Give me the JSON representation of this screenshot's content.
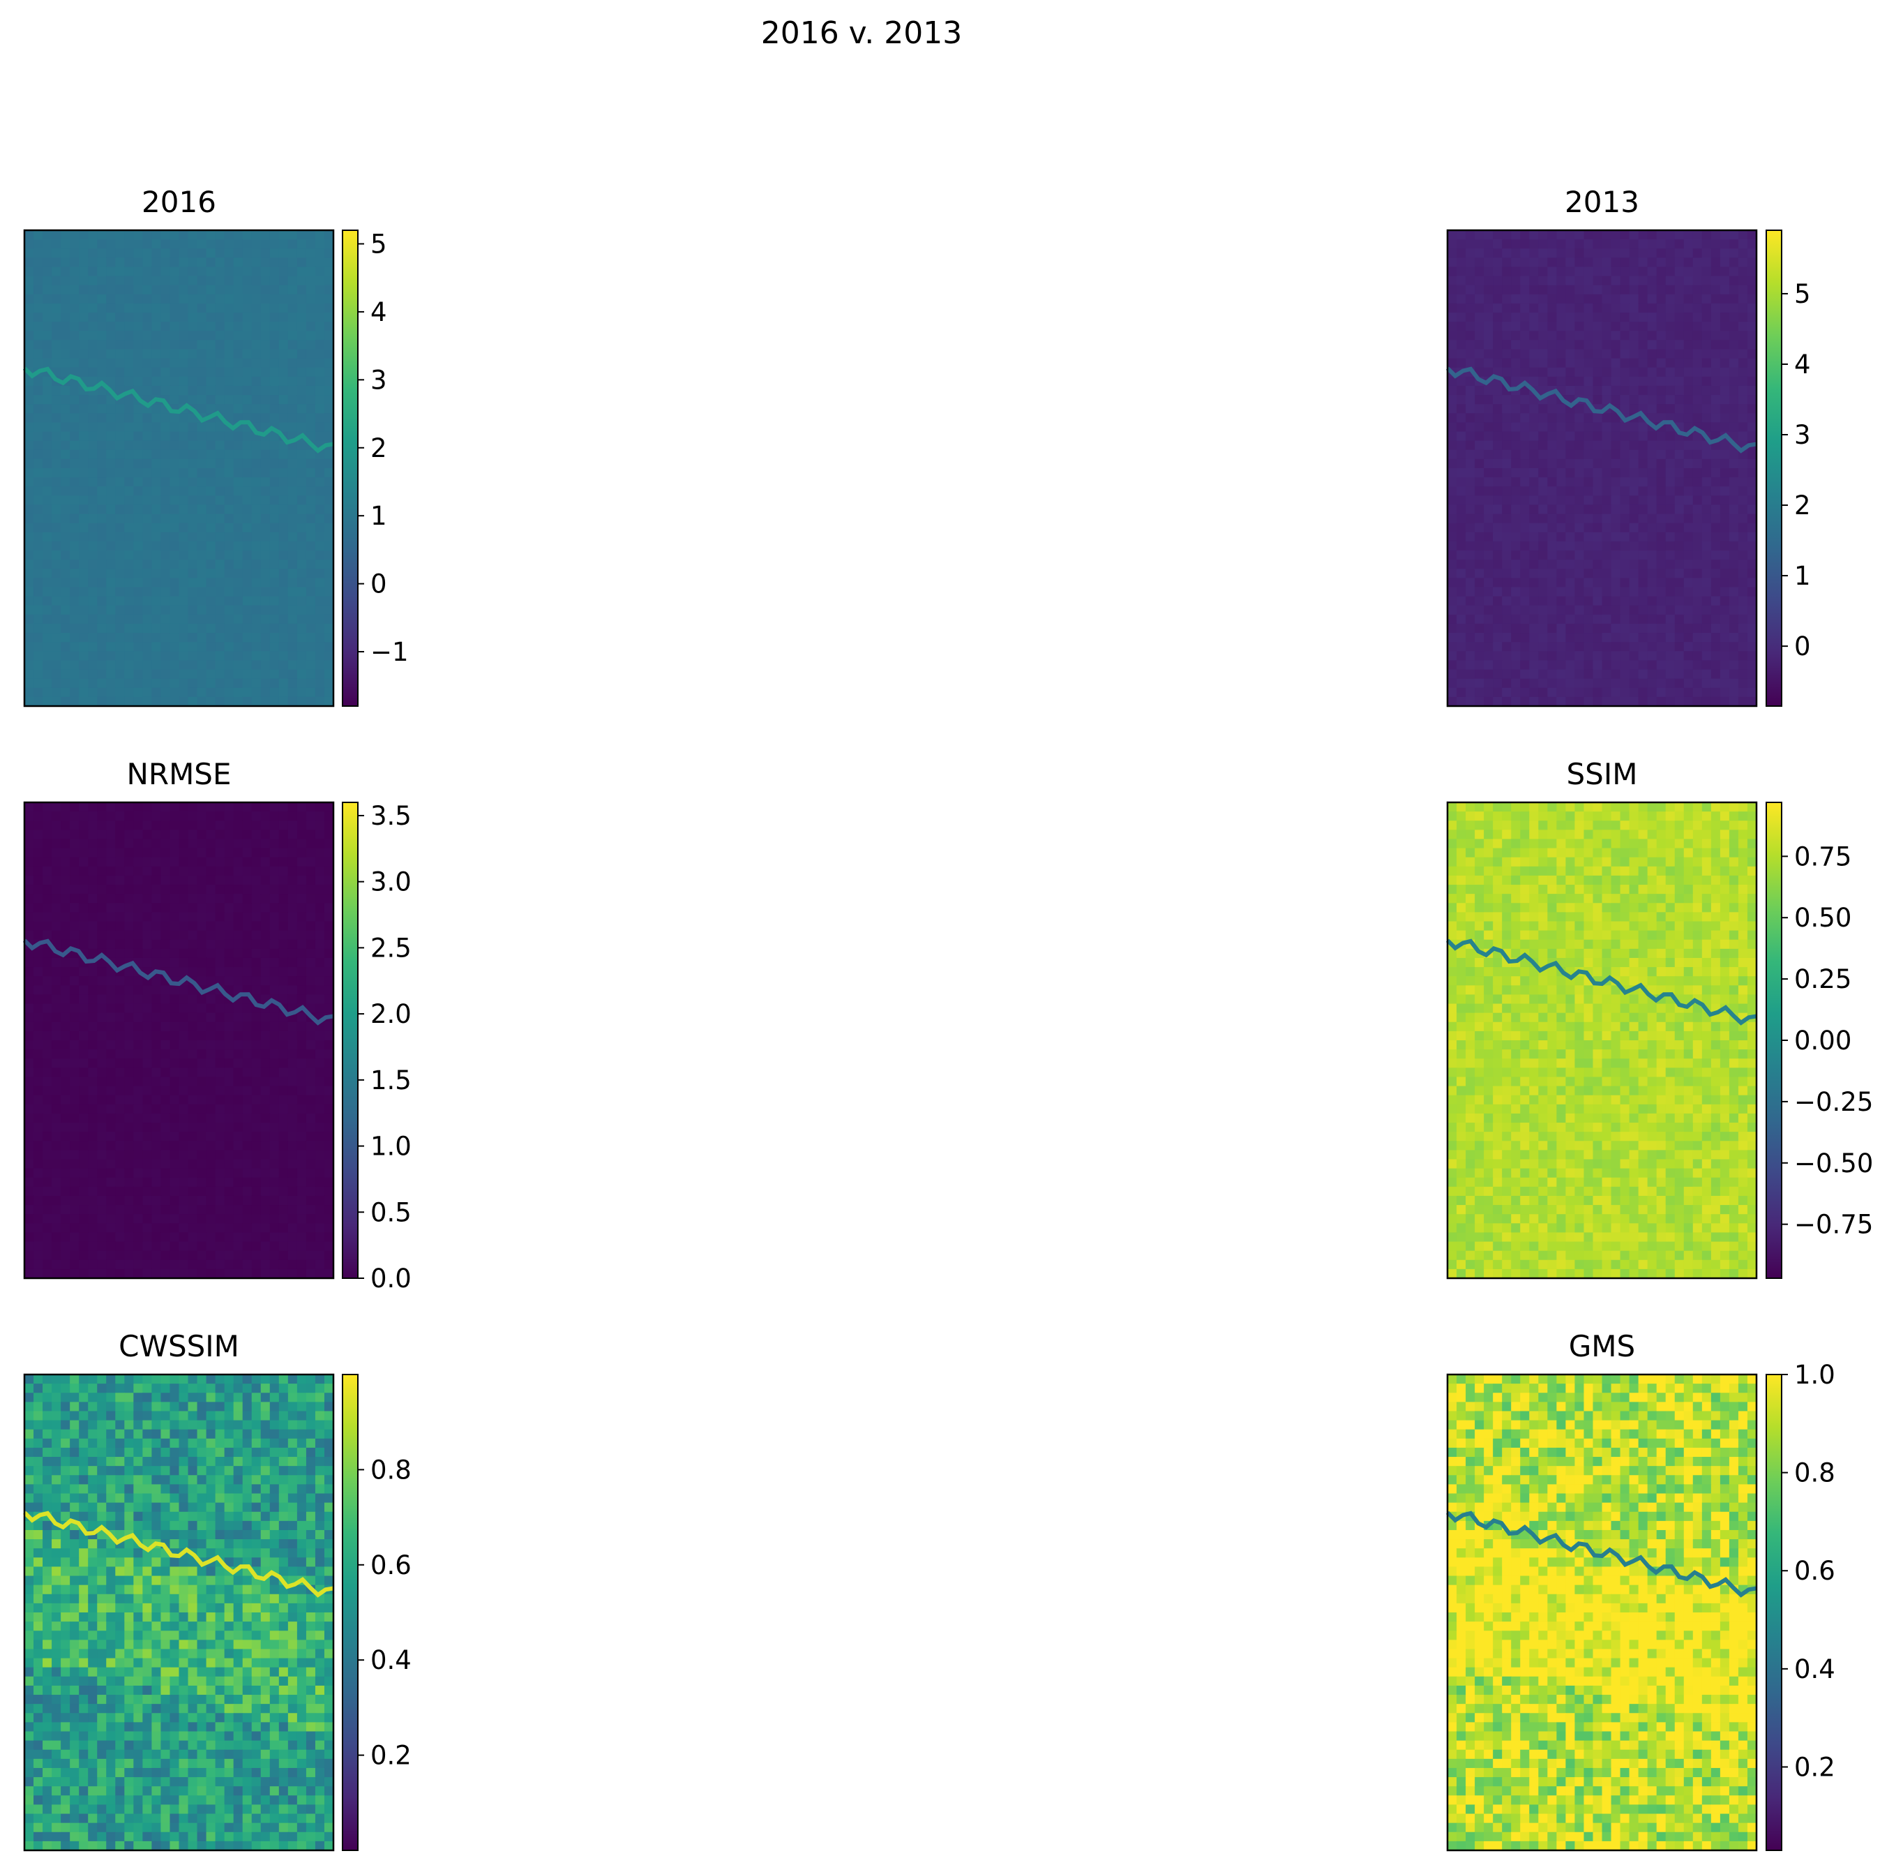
{
  "suptitle": "2016 v. 2013",
  "colors": {
    "viridis": [
      "#440154",
      "#482878",
      "#3e4989",
      "#31688e",
      "#26828e",
      "#1f9e89",
      "#35b779",
      "#6ece58",
      "#b5de2b",
      "#fde725"
    ],
    "background": "#ffffff",
    "axis": "#000000"
  },
  "chart_data": [
    {
      "type": "heatmap",
      "title": "2016",
      "colormap": "viridis",
      "base_value": 0.9,
      "coastline_level": 2.0,
      "texture": "low",
      "colorbar": {
        "vmin": -1.8,
        "vmax": 5.2,
        "ticks": [
          -1,
          0,
          1,
          2,
          3,
          4,
          5
        ],
        "tick_labels": [
          "−1",
          "0",
          "1",
          "2",
          "3",
          "4",
          "5"
        ]
      },
      "icon": "heatmap-image"
    },
    {
      "type": "heatmap",
      "title": "2013",
      "colormap": "viridis",
      "base_value": -0.2,
      "coastline_level": 1.3,
      "texture": "low",
      "colorbar": {
        "vmin": -0.85,
        "vmax": 5.9,
        "ticks": [
          0,
          1,
          2,
          3,
          4,
          5
        ],
        "tick_labels": [
          "0",
          "1",
          "2",
          "3",
          "4",
          "5"
        ]
      },
      "icon": "heatmap-image"
    },
    {
      "type": "heatmap",
      "title": "NRMSE",
      "colormap": "viridis",
      "base_value": 0.02,
      "coastline_level": 1.0,
      "texture": "none",
      "colorbar": {
        "vmin": 0.0,
        "vmax": 3.6,
        "ticks": [
          0.0,
          0.5,
          1.0,
          1.5,
          2.0,
          2.5,
          3.0,
          3.5
        ],
        "tick_labels": [
          "0.0",
          "0.5",
          "1.0",
          "1.5",
          "2.0",
          "2.5",
          "3.0",
          "3.5"
        ]
      },
      "icon": "heatmap-image"
    },
    {
      "type": "heatmap",
      "title": "SSIM",
      "colormap": "viridis",
      "base_value": 0.75,
      "coastline_level": -0.1,
      "texture": "medium",
      "colorbar": {
        "vmin": -0.97,
        "vmax": 0.97,
        "ticks": [
          -0.75,
          -0.5,
          -0.25,
          0.0,
          0.25,
          0.5,
          0.75
        ],
        "tick_labels": [
          "−0.75",
          "−0.50",
          "−0.25",
          "0.00",
          "0.25",
          "0.50",
          "0.75"
        ]
      },
      "icon": "heatmap-image"
    },
    {
      "type": "heatmap",
      "title": "CWSSIM",
      "colormap": "viridis",
      "base_value": 0.55,
      "coastline_level": 0.95,
      "texture": "high",
      "colorbar": {
        "vmin": 0.0,
        "vmax": 1.0,
        "ticks": [
          0.2,
          0.4,
          0.6,
          0.8
        ],
        "tick_labels": [
          "0.2",
          "0.4",
          "0.6",
          "0.8"
        ]
      },
      "icon": "heatmap-image"
    },
    {
      "type": "heatmap",
      "title": "GMS",
      "colormap": "viridis",
      "base_value": 0.9,
      "coastline_level": 0.45,
      "texture": "high",
      "colorbar": {
        "vmin": 0.03,
        "vmax": 1.0,
        "ticks": [
          0.2,
          0.4,
          0.6,
          0.8,
          1.0
        ],
        "tick_labels": [
          "0.2",
          "0.4",
          "0.6",
          "0.8",
          "1.0"
        ]
      },
      "icon": "heatmap-image"
    }
  ]
}
